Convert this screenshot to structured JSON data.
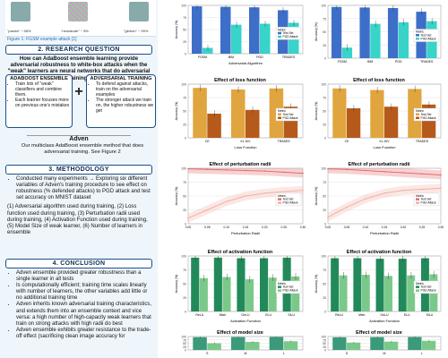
{
  "poster": {
    "figure": {
      "labels": [
        "\"panda\" ~ 58%",
        "\"nematode\" ~ 8%",
        "\"gibbon\" ~ 99%"
      ],
      "caption": "Figure 1: FGSM example attack [1]"
    },
    "rq": {
      "title": "2. RESEARCH QUESTION",
      "text": "How can AdaBoost ensemble learning provide adversarial robustness to white-box attacks when the \"weak\" learners are neural networks that do adversarial training?",
      "box1": {
        "title": "ADABOOST ENSEMBLE",
        "items": [
          "Train lots of \"weak\" classifiers and combine them.",
          "Each learner focuses more on previous one's mistakes"
        ]
      },
      "box2": {
        "title": "ADVERSARIAL TRAINING",
        "items": [
          "To defend against attacks, train on the adversarial examples",
          "The stronger attack we train on, the higher robustness we get"
        ]
      },
      "adven_heading": "Adven",
      "adven_text": "Our multiclass AdaBoost ensemble method that does adversarial training. See Figure 2"
    },
    "methodology": {
      "title": "3. METHODOLOGY",
      "bullet": "Conducted many experiments → Exploring six different variables of Adven's training procedure to see effect on robustness (% defended attacks) to PGD attack and test set accuracy on MNIST dataset",
      "para": "(1) Adversarial algorithm used during training, (2) Loss function used during training, (3) Perturbation radii used during training, (4) Activation Function used during training, (5) Model Size of weak learner, (6) Number of learners in ensemble"
    },
    "conclusion": {
      "title": "4. CONCLUSION",
      "items": [
        "Adven ensemble provided greater robustness than a single learner in all tests",
        "Is computationally efficient; training time scales linearly with number of learners, the other variables add little or no additional training time",
        "Adven inherits known adversarial training characteristics, and extends them into an ensemble context and vice versa: a high number of high-capacity weak learners that train on strong attacks with high radii do best",
        "Adven ensemble exhibits greater resistance to the trade-off effect (sacrificing clean image accuracy for"
      ]
    }
  },
  "charts": {
    "legend": {
      "title": "Metric",
      "test": "Test Set",
      "pgd": "PGD Attack"
    },
    "colors": {
      "blue": "#3d6fc9",
      "teal": "#38d3c9",
      "orange": "#e0a53f",
      "darkorange": "#b65a1c",
      "pink": "#e56b6b",
      "salmon": "#f1b0a6",
      "green": "#228a5a",
      "lightgreen": "#7bc98a",
      "mid": "#3b9a7a"
    }
  },
  "chart_data": [
    {
      "type": "bar",
      "title": "",
      "xlabel": "Adversarial Algorithm",
      "ylabel": "Accuracy (%)",
      "categories": [
        "FGSM",
        "BIM",
        "PGD",
        "TRADES"
      ],
      "ylim": [
        0,
        100
      ],
      "series": [
        {
          "name": "Test Set",
          "values": [
            98,
            97,
            96,
            90
          ]
        },
        {
          "name": "PGD Attack",
          "values": [
            12,
            60,
            62,
            64
          ]
        }
      ]
    },
    {
      "type": "bar",
      "title": "",
      "xlabel": "",
      "ylabel": "Accuracy (%)",
      "categories": [
        "FGSM",
        "BIM",
        "PGD",
        "TRADES"
      ],
      "ylim": [
        0,
        100
      ],
      "series": [
        {
          "name": "Test Set",
          "values": [
            97,
            96,
            95,
            88
          ]
        },
        {
          "name": "PGD Attack",
          "values": [
            20,
            65,
            68,
            70
          ]
        }
      ]
    },
    {
      "type": "bar",
      "title": "Effect of loss function",
      "xlabel": "Loss Function",
      "ylabel": "Accuracy (%)",
      "categories": [
        "CE",
        "KL DIV",
        "TRADES"
      ],
      "ylim": [
        0,
        100
      ],
      "series": [
        {
          "name": "Test Set",
          "values": [
            93,
            90,
            92
          ]
        },
        {
          "name": "PGD Attack",
          "values": [
            45,
            52,
            58
          ]
        }
      ]
    },
    {
      "type": "bar",
      "title": "Effect of loss function",
      "xlabel": "Loss Function",
      "ylabel": "Accuracy (%)",
      "categories": [
        "CE",
        "KL DIV",
        "TRADES"
      ],
      "ylim": [
        0,
        100
      ],
      "series": [
        {
          "name": "Test Set",
          "values": [
            92,
            89,
            91
          ]
        },
        {
          "name": "PGD Attack",
          "values": [
            55,
            58,
            62
          ]
        }
      ]
    },
    {
      "type": "line",
      "title": "Effect of perturbation radii",
      "xlabel": "Perturbation Radii",
      "ylabel": "Accuracy (%)",
      "x": [
        0.0,
        0.05,
        0.1,
        0.15,
        0.2,
        0.25,
        0.3
      ],
      "ylim": [
        0,
        100
      ],
      "series": [
        {
          "name": "Test Set",
          "values": [
            99,
            98,
            97,
            96,
            95,
            93,
            91
          ]
        },
        {
          "name": "PGD Attack",
          "values": [
            10,
            25,
            40,
            50,
            55,
            58,
            60
          ]
        }
      ]
    },
    {
      "type": "line",
      "title": "Effect of perturbation radii",
      "xlabel": "Perturbation Radii",
      "ylabel": "Accuracy (%)",
      "x": [
        0.0,
        0.05,
        0.1,
        0.15,
        0.2,
        0.25,
        0.3
      ],
      "ylim": [
        0,
        100
      ],
      "series": [
        {
          "name": "Test Set",
          "values": [
            99,
            98,
            96,
            94,
            92,
            90,
            88
          ]
        },
        {
          "name": "PGD Attack",
          "values": [
            12,
            30,
            45,
            55,
            60,
            62,
            64
          ]
        }
      ]
    },
    {
      "type": "bar",
      "title": "Effect of activation function",
      "xlabel": "Activation Function",
      "ylabel": "Accuracy (%)",
      "categories": [
        "ReLU",
        "Mish",
        "GeLU",
        "ELU",
        "SiLU"
      ],
      "ylim": [
        0,
        100
      ],
      "series": [
        {
          "name": "Test Set",
          "values": [
            97,
            97,
            96,
            96,
            97
          ]
        },
        {
          "name": "PGD Attack",
          "values": [
            60,
            62,
            58,
            61,
            63
          ]
        }
      ]
    },
    {
      "type": "bar",
      "title": "Effect of activation function",
      "xlabel": "Activation Function",
      "ylabel": "Accuracy (%)",
      "categories": [
        "ReLU",
        "Mish",
        "GeLU",
        "ELU",
        "SiLU"
      ],
      "ylim": [
        0,
        100
      ],
      "series": [
        {
          "name": "Test Set",
          "values": [
            96,
            96,
            95,
            95,
            96
          ]
        },
        {
          "name": "PGD Attack",
          "values": [
            65,
            66,
            64,
            65,
            67
          ]
        }
      ]
    },
    {
      "type": "bar",
      "title": "Effect of model size",
      "xlabel": "",
      "ylabel": "",
      "categories": [
        "S",
        "M",
        "L"
      ],
      "ylim": [
        0,
        100
      ],
      "series": [
        {
          "name": "Test Set",
          "values": [
            95,
            96,
            97
          ]
        },
        {
          "name": "PGD Attack",
          "values": [
            50,
            60,
            65
          ]
        }
      ]
    },
    {
      "type": "bar",
      "title": "Effect of model size",
      "xlabel": "",
      "ylabel": "",
      "categories": [
        "S",
        "M",
        "L"
      ],
      "ylim": [
        0,
        100
      ],
      "series": [
        {
          "name": "Test Set",
          "values": [
            94,
            95,
            96
          ]
        },
        {
          "name": "PGD Attack",
          "values": [
            55,
            62,
            68
          ]
        }
      ]
    }
  ]
}
